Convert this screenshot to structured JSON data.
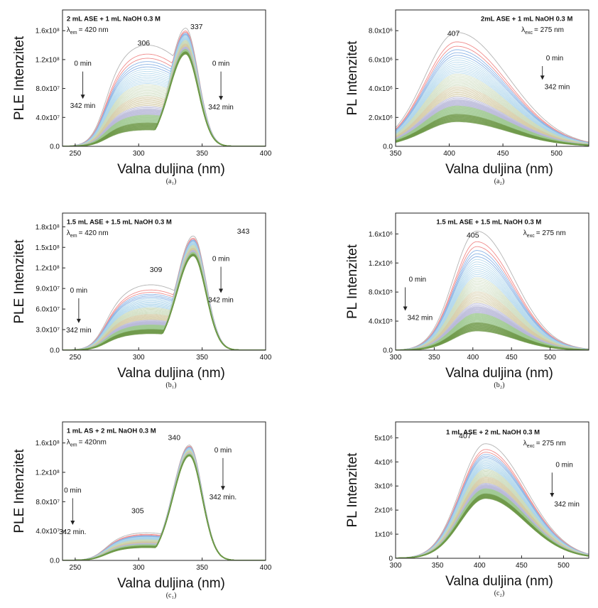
{
  "figure": {
    "curve_palette": [
      "#b4b4b4",
      "#f08c8c",
      "#8cb4e6",
      "#a8d2ea",
      "#c8d8b8",
      "#d2c8a0",
      "#b8b8d8",
      "#9ec890",
      "#6e9848",
      "#4a6e2a"
    ]
  },
  "chart_data": [
    {
      "id": "a1",
      "type": "line",
      "mode": "ple",
      "title": "2 mL ASE + 1 mL NaOH 0.3 M",
      "lambda_symbol": "λ",
      "lambda_sub": "em",
      "lambda_value": "= 420 nm",
      "ylabel": "PLE Intenzitet",
      "xlabel": "Valna duljina (nm)",
      "sublabel": "(a₁)",
      "xlim": [
        240,
        400
      ],
      "ylim": [
        0,
        180000000.0
      ],
      "xticks": [
        "250",
        "300",
        "350",
        "400"
      ],
      "yticks": [
        "0.0",
        "4.0x10⁷",
        "8.0x10⁷",
        "1.2x10⁸",
        "1.6x10⁸"
      ],
      "peak_labels": [
        "306",
        "337"
      ],
      "time_start": "0 min",
      "time_end": "342 min",
      "series_summary": {
        "count": 60,
        "main_peak_nm": 337,
        "shoulder_nm": 306,
        "main_peak_max": 156000000.0,
        "main_peak_min": 122000000.0,
        "shoulder_max": 134000000.0,
        "shoulder_min": 22000000.0
      }
    },
    {
      "id": "a2",
      "type": "line",
      "mode": "pl",
      "title": "2mL ASE + 1 mL NaOH 0.3 M",
      "lambda_symbol": "λ",
      "lambda_sub": "exc",
      "lambda_value": "= 275 nm",
      "ylabel": "PL Intenzitet",
      "xlabel": "Valna duljina (nm)",
      "sublabel": "(a₂)",
      "xlim": [
        350,
        530
      ],
      "ylim": [
        0,
        8500000.0
      ],
      "xticks": [
        "350",
        "400",
        "450",
        "500"
      ],
      "yticks": [
        "0.0",
        "2.0x10⁶",
        "4.0x10⁶",
        "6.0x10⁶",
        "8.0x10⁶"
      ],
      "peak_labels": [
        "407"
      ],
      "time_start": "0 min",
      "time_end": "342 min",
      "series_summary": {
        "count": 60,
        "peak_nm": 407,
        "peak_max": 7100000.0,
        "peak_min": 1550000.0
      }
    },
    {
      "id": "b1",
      "type": "line",
      "mode": "ple",
      "title": "1.5 mL ASE + 1.5 mL NaOH 0.3 M",
      "lambda_symbol": "λ",
      "lambda_sub": "em",
      "lambda_value": "= 420 nm",
      "ylabel": "PLE Intenzitet",
      "xlabel": "Valna duljina (nm)",
      "sublabel": "(b₁)",
      "xlim": [
        240,
        400
      ],
      "ylim": [
        0,
        180000000.0
      ],
      "xticks": [
        "250",
        "300",
        "350",
        "400"
      ],
      "yticks": [
        "0.0",
        "3.0x10⁷",
        "6.0x10⁷",
        "9.0x10⁷",
        "1.2x10⁸",
        "1.5x10⁸",
        "1.8x10⁸"
      ],
      "peak_labels": [
        "309",
        "343"
      ],
      "time_start": "0 min",
      "time_end": "342 min",
      "series_summary": {
        "count": 60,
        "main_peak_nm": 343,
        "shoulder_nm": 309,
        "main_peak_max": 150000000.0,
        "main_peak_min": 124000000.0,
        "shoulder_max": 86000000.0,
        "shoulder_min": 22000000.0
      }
    },
    {
      "id": "b2",
      "type": "line",
      "mode": "pl",
      "title": "1.5 mL ASE + 1.5 mL NaOH 0.3 M",
      "lambda_symbol": "λ",
      "lambda_sub": "exc",
      "lambda_value": "= 275 nm",
      "ylabel": "PL Intenzitet",
      "xlabel": "Valna duljina (nm)",
      "sublabel": "(b₂)",
      "xlim": [
        300,
        550
      ],
      "ylim": [
        0,
        1900000.0
      ],
      "xticks": [
        "300",
        "350",
        "400",
        "450",
        "500"
      ],
      "yticks": [
        "0.0",
        "4.0x10⁵",
        "8.0x10⁵",
        "1.2x10⁶",
        "1.6x10⁶"
      ],
      "peak_labels": [
        "405"
      ],
      "time_start": "0 min",
      "time_end": "342 min",
      "series_summary": {
        "count": 60,
        "peak_nm": 405,
        "peak_max": 1650000.0,
        "peak_min": 270000.0
      }
    },
    {
      "id": "c1",
      "type": "line",
      "mode": "ple",
      "title": "1 mL AS + 2 mL NaOH 0.3 M",
      "lambda_symbol": "λ",
      "lambda_sub": "em",
      "lambda_value": "= 420nm",
      "ylabel": "PLE Intenzitet",
      "xlabel": "Valna duljina (nm)",
      "sublabel": "(c₁)",
      "xlim": [
        240,
        400
      ],
      "ylim": [
        0,
        180000000.0
      ],
      "xticks": [
        "250",
        "300",
        "350",
        "400"
      ],
      "yticks": [
        "0.0",
        "4.0x10⁷",
        "8.0x10⁷",
        "1.2x10⁸",
        "1.6x10⁸"
      ],
      "peak_labels": [
        "305",
        "340"
      ],
      "time_start": "0 min",
      "time_end": "342 min.",
      "series_summary": {
        "count": 60,
        "main_peak_nm": 340,
        "shoulder_nm": 305,
        "main_peak_max": 150000000.0,
        "main_peak_min": 136000000.0,
        "shoulder_max": 36000000.0,
        "shoulder_min": 17000000.0
      }
    },
    {
      "id": "c2",
      "type": "line",
      "mode": "pl",
      "title": "1 mL ASE + 2 mL NaOH 0.3 M",
      "lambda_symbol": "λ",
      "lambda_sub": "exc",
      "lambda_value": "= 275 nm",
      "ylabel": "PL Intenzitet",
      "xlabel": "Valna duljina (nm)",
      "sublabel": "(c₂)",
      "xlim": [
        300,
        530
      ],
      "ylim": [
        0,
        5000000.0
      ],
      "xticks": [
        "300",
        "350",
        "400",
        "450",
        "500"
      ],
      "yticks": [
        "0",
        "1x10⁶",
        "2x10⁶",
        "3x10⁶",
        "4x10⁶",
        "5x10⁶"
      ],
      "peak_labels": [
        "407"
      ],
      "time_start": "0 min",
      "time_end": "342 min",
      "series_summary": {
        "count": 60,
        "peak_nm": 407,
        "peak_max": 4200000.0,
        "peak_min": 2200000.0
      }
    }
  ]
}
